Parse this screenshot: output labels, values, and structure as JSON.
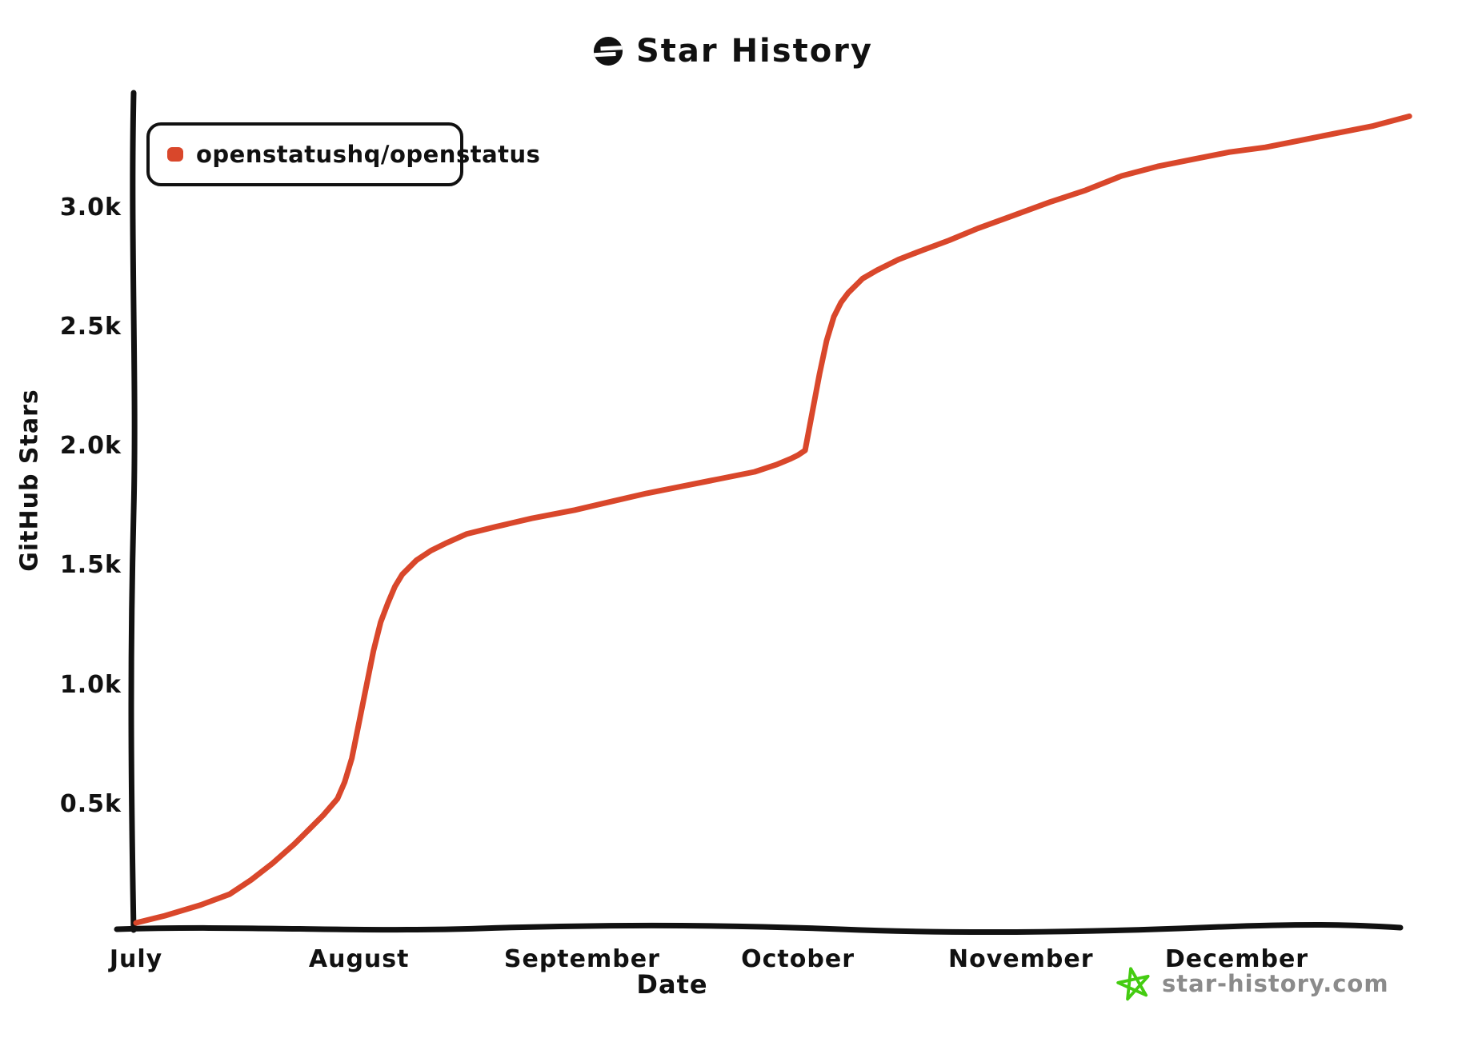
{
  "chart_data": {
    "type": "line",
    "title": "Star History",
    "xlabel": "Date",
    "ylabel": "GitHub Stars",
    "x_unit": "days since July 1",
    "x_ticks": [
      {
        "label": "July",
        "day": 0
      },
      {
        "label": "August",
        "day": 31
      },
      {
        "label": "September",
        "day": 62
      },
      {
        "label": "October",
        "day": 92
      },
      {
        "label": "November",
        "day": 123
      },
      {
        "label": "December",
        "day": 153
      }
    ],
    "y_ticks": [
      {
        "label": "0.5k",
        "value": 500
      },
      {
        "label": "1.0k",
        "value": 1000
      },
      {
        "label": "1.5k",
        "value": 1500
      },
      {
        "label": "2.0k",
        "value": 2000
      },
      {
        "label": "2.5k",
        "value": 2500
      },
      {
        "label": "3.0k",
        "value": 3000
      }
    ],
    "ylim": [
      0,
      3520
    ],
    "xlim_days": [
      0,
      183
    ],
    "grid": false,
    "legend_position": "top-left",
    "series": [
      {
        "name": "openstatushq/openstatus",
        "color": "#d9472b",
        "points": [
          [
            0,
            10
          ],
          [
            4,
            40
          ],
          [
            9,
            85
          ],
          [
            13,
            130
          ],
          [
            16,
            190
          ],
          [
            19,
            260
          ],
          [
            22,
            340
          ],
          [
            24,
            400
          ],
          [
            26,
            460
          ],
          [
            28,
            530
          ],
          [
            29,
            600
          ],
          [
            30,
            700
          ],
          [
            31,
            850
          ],
          [
            32,
            1000
          ],
          [
            33,
            1150
          ],
          [
            34,
            1270
          ],
          [
            35,
            1350
          ],
          [
            36,
            1420
          ],
          [
            37,
            1470
          ],
          [
            39,
            1530
          ],
          [
            41,
            1570
          ],
          [
            43,
            1600
          ],
          [
            46,
            1640
          ],
          [
            50,
            1670
          ],
          [
            55,
            1705
          ],
          [
            61,
            1740
          ],
          [
            66,
            1775
          ],
          [
            71,
            1810
          ],
          [
            76,
            1840
          ],
          [
            81,
            1870
          ],
          [
            86,
            1900
          ],
          [
            89,
            1930
          ],
          [
            91,
            1955
          ],
          [
            92,
            1970
          ],
          [
            93,
            1990
          ],
          [
            94,
            2150
          ],
          [
            95,
            2310
          ],
          [
            96,
            2450
          ],
          [
            97,
            2550
          ],
          [
            98,
            2610
          ],
          [
            99,
            2650
          ],
          [
            101,
            2710
          ],
          [
            103,
            2745
          ],
          [
            106,
            2790
          ],
          [
            109,
            2825
          ],
          [
            113,
            2870
          ],
          [
            117,
            2920
          ],
          [
            122,
            2975
          ],
          [
            127,
            3030
          ],
          [
            132,
            3080
          ],
          [
            137,
            3140
          ],
          [
            142,
            3180
          ],
          [
            147,
            3210
          ],
          [
            152,
            3240
          ],
          [
            157,
            3260
          ],
          [
            162,
            3290
          ],
          [
            167,
            3320
          ],
          [
            172,
            3350
          ],
          [
            177,
            3390
          ]
        ]
      }
    ]
  },
  "colors": {
    "axis": "#111111",
    "series_red": "#d9472b",
    "watermark_gray": "#8b8b8b",
    "watermark_star_green": "#44cc11",
    "logo_black": "#111111"
  },
  "watermark": {
    "text": "star-history.com"
  }
}
